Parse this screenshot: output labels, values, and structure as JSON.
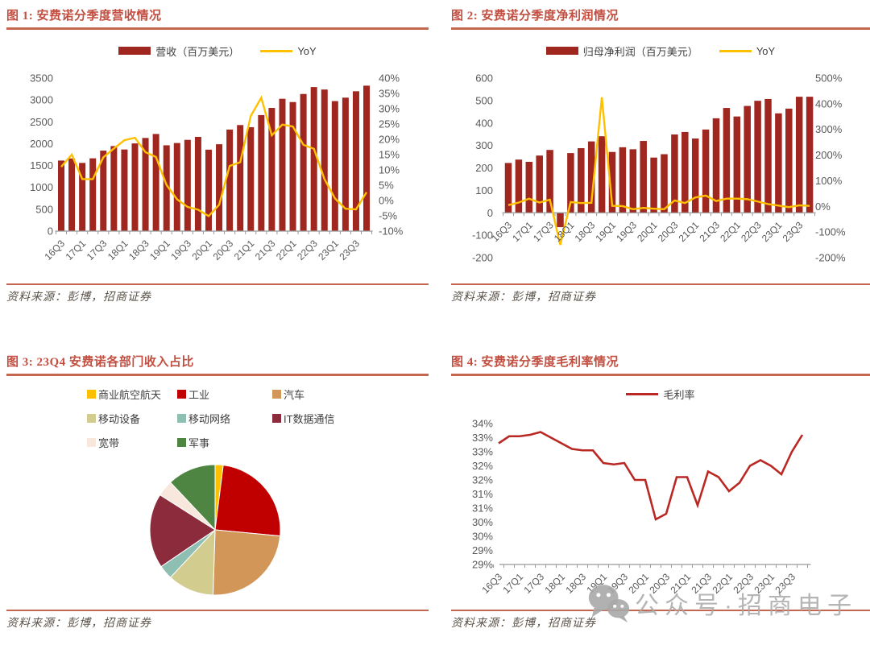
{
  "page": {
    "watermark": {
      "text": "公众号·招商电子",
      "icon": "wechat-icon"
    }
  },
  "colors": {
    "bar_red": "#A02620",
    "yoy_gold": "#FFC000",
    "margin_line": "#B92823",
    "title_red": "#C24F41",
    "rule_red": "#C4674E",
    "axis_text": "#595959",
    "axis_line": "#999999",
    "source_text": "#5A5248",
    "watermark_gray": "#A8A8A8"
  },
  "panels": {
    "fig1": {
      "title": "图 1: 安费诺分季度营收情况",
      "source": "资料来源：彭博，招商证券"
    },
    "fig2": {
      "title": "图 2: 安费诺分季度净利润情况",
      "source": "资料来源：彭博，招商证券"
    },
    "fig3": {
      "title": "图 3: 23Q4 安费诺各部门收入占比",
      "source": "资料来源：彭博，招商证券"
    },
    "fig4": {
      "title": "图 4: 安费诺分季度毛利率情况",
      "source": "资料来源：彭博，招商证券"
    }
  },
  "chart_data": [
    {
      "id": "fig1",
      "type": "bar",
      "title": "安费诺分季度营收情况",
      "categories": [
        "16Q3",
        "16Q4",
        "17Q1",
        "17Q2",
        "17Q3",
        "17Q4",
        "18Q1",
        "18Q2",
        "18Q3",
        "18Q4",
        "19Q1",
        "19Q2",
        "19Q3",
        "19Q4",
        "20Q1",
        "20Q2",
        "20Q3",
        "20Q4",
        "21Q1",
        "21Q2",
        "21Q3",
        "21Q4",
        "22Q1",
        "22Q2",
        "22Q3",
        "22Q4",
        "23Q1",
        "23Q2",
        "23Q3",
        "23Q4"
      ],
      "x_label_every": 2,
      "series": [
        {
          "name": "营收（百万美元）",
          "type": "bar",
          "axis": "left",
          "color": "#A02620",
          "values": [
            1614,
            1662,
            1560,
            1665,
            1841,
            1945,
            1867,
            2006,
            2131,
            2222,
            1963,
            2015,
            2087,
            2156,
            1863,
            1987,
            2323,
            2426,
            2377,
            2654,
            2818,
            3027,
            2952,
            3137,
            3295,
            3239,
            2974,
            3053,
            3199,
            3327
          ]
        },
        {
          "name": "YoY",
          "type": "line",
          "axis": "right",
          "color": "#FFC000",
          "values": [
            11,
            15,
            7,
            7,
            14.1,
            17,
            19.7,
            20.5,
            15.8,
            14.2,
            5.1,
            0.4,
            -2.1,
            -3,
            -5.1,
            -1.4,
            11.3,
            12.5,
            27.6,
            33.6,
            21.3,
            24.8,
            24.2,
            18.2,
            16.9,
            7,
            0.7,
            -2.7,
            -2.9,
            2.7
          ]
        }
      ],
      "left_axis": {
        "min": 0,
        "max": 3500,
        "step": 500,
        "labels_top_to_bottom": [
          "3500",
          "3000",
          "2500",
          "2000",
          "1500",
          "1000",
          "500",
          "0"
        ]
      },
      "right_axis": {
        "min": -10,
        "max": 40,
        "step": 5,
        "labels_top_to_bottom": [
          "40%",
          "35%",
          "30%",
          "25%",
          "20%",
          "15%",
          "10%",
          "5%",
          "0%",
          "-5%",
          "-10%"
        ]
      },
      "grid": false,
      "legend_position": "top"
    },
    {
      "id": "fig2",
      "type": "bar",
      "title": "安费诺分季度净利润情况",
      "categories": [
        "16Q3",
        "16Q4",
        "17Q1",
        "17Q2",
        "17Q3",
        "17Q4",
        "18Q1",
        "18Q2",
        "18Q3",
        "18Q4",
        "19Q1",
        "19Q2",
        "19Q3",
        "19Q4",
        "20Q1",
        "20Q2",
        "20Q3",
        "20Q4",
        "21Q1",
        "21Q2",
        "21Q3",
        "21Q4",
        "22Q1",
        "22Q2",
        "22Q3",
        "22Q4",
        "23Q1",
        "23Q2",
        "23Q3",
        "23Q4"
      ],
      "x_label_every": 2,
      "series": [
        {
          "name": "归母净利润（百万美元）",
          "type": "bar",
          "axis": "left",
          "color": "#A02620",
          "values": [
            222,
            237,
            227,
            255,
            280,
            -64,
            266,
            288,
            318,
            341,
            271,
            292,
            283,
            320,
            246,
            261,
            349,
            360,
            331,
            371,
            421,
            467,
            429,
            476,
            499,
            507,
            443,
            464,
            517,
            517
          ]
        },
        {
          "name": "YoY",
          "type": "line",
          "axis": "right",
          "color": "#FFC000",
          "values": [
            5,
            15,
            30,
            15,
            26,
            -150,
            17,
            13,
            14,
            425,
            2,
            1,
            -11,
            -6,
            -9,
            -11,
            23,
            13,
            35,
            42,
            21,
            30,
            30,
            28,
            19,
            9,
            3,
            -3,
            4,
            2
          ]
        }
      ],
      "left_axis": {
        "min": -200,
        "max": 600,
        "step": 100,
        "labels_top_to_bottom": [
          "600",
          "500",
          "400",
          "300",
          "200",
          "100",
          "0",
          "-100",
          "-200"
        ]
      },
      "right_axis": {
        "min": -200,
        "max": 500,
        "step": 100,
        "labels_top_to_bottom": [
          "500%",
          "400%",
          "300%",
          "200%",
          "100%",
          "0%",
          "-100%",
          "-200%"
        ]
      },
      "grid": false,
      "legend_position": "top"
    },
    {
      "id": "fig3",
      "type": "pie",
      "title": "23Q4 安费诺各部门收入占比",
      "labels": [
        "商业航空航天",
        "工业",
        "汽车",
        "移动设备",
        "移动网络",
        "IT数据通信",
        "宽带",
        "军事"
      ],
      "values": [
        2,
        24.5,
        24,
        11.5,
        3.5,
        18.5,
        4,
        12
      ],
      "colors": [
        "#FFC000",
        "#C00000",
        "#D29658",
        "#D3CC8F",
        "#8FBFB2",
        "#8C2B3B",
        "#F8E7DC",
        "#4F8542"
      ],
      "start_angle_deg": 0,
      "direction": "clockwise",
      "legend_position": "top"
    },
    {
      "id": "fig4",
      "type": "line",
      "title": "安费诺分季度毛利率情况",
      "categories": [
        "16Q3",
        "16Q4",
        "17Q1",
        "17Q2",
        "17Q3",
        "17Q4",
        "18Q1",
        "18Q2",
        "18Q3",
        "18Q4",
        "19Q1",
        "19Q2",
        "19Q3",
        "19Q4",
        "20Q1",
        "20Q2",
        "20Q3",
        "20Q4",
        "21Q1",
        "21Q2",
        "21Q3",
        "21Q4",
        "22Q1",
        "22Q2",
        "22Q3",
        "22Q4",
        "23Q1",
        "23Q2",
        "23Q3",
        "23Q4"
      ],
      "x_label_every": 2,
      "series": [
        {
          "name": "毛利率",
          "type": "line",
          "color": "#B92823",
          "values": [
            32.8,
            33.05,
            33.05,
            33.1,
            33.2,
            33.0,
            32.8,
            32.6,
            32.55,
            32.55,
            32.1,
            32.05,
            32.1,
            31.5,
            31.5,
            30.1,
            30.3,
            31.6,
            31.6,
            30.6,
            31.8,
            31.6,
            31.1,
            31.4,
            32.0,
            32.2,
            32.0,
            31.7,
            32.5,
            33.1
          ]
        }
      ],
      "y_axis": {
        "min": 28.5,
        "max": 33.5,
        "step": 0.5,
        "labels_top_to_bottom": [
          "34%",
          "33%",
          "33%",
          "32%",
          "32%",
          "31%",
          "31%",
          "30%",
          "30%",
          "29%",
          "29%"
        ]
      },
      "ylabel": "",
      "xlabel": "",
      "grid": false,
      "legend_position": "top"
    }
  ]
}
